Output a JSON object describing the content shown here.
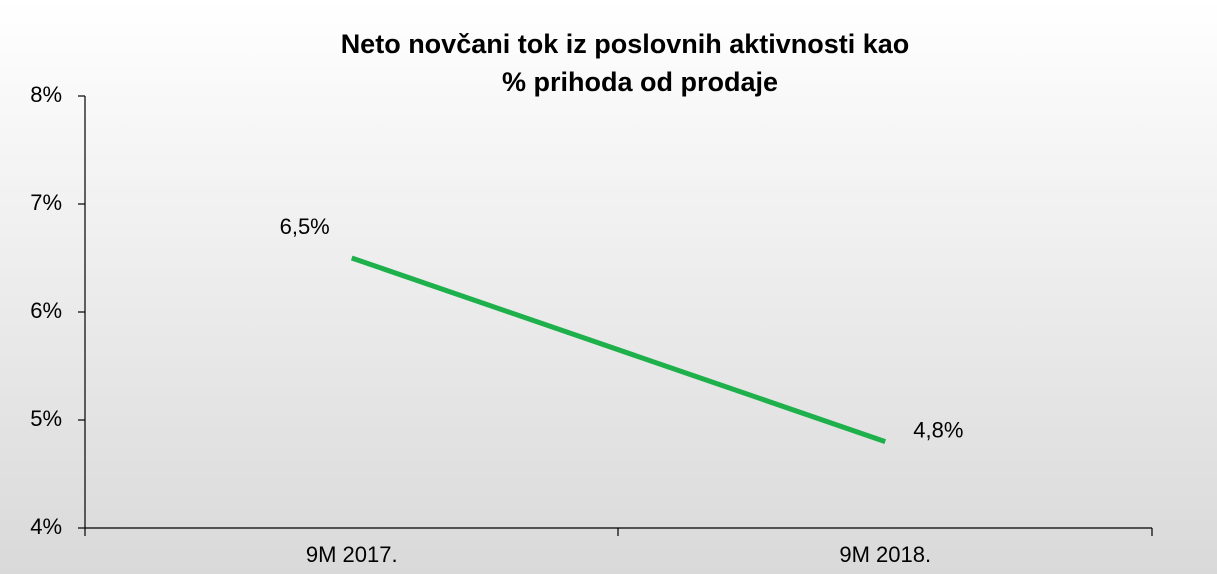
{
  "chart_data": {
    "type": "line",
    "title": [
      "Neto novčani tok iz poslovnih aktivnosti kao",
      "% prihoda od prodaje"
    ],
    "categories": [
      "9M 2017.",
      "9M 2018."
    ],
    "series": [
      {
        "name": "Neto novčani tok iz poslovnih aktivnosti kao % prihoda od prodaje",
        "color": "#1db04b",
        "values": [
          6.5,
          4.8
        ],
        "value_labels": [
          "6,5%",
          "4,8%"
        ]
      }
    ],
    "ylim": [
      4,
      8
    ],
    "yticks": [
      {
        "value": 4,
        "label": "4%"
      },
      {
        "value": 5,
        "label": "5%"
      },
      {
        "value": 6,
        "label": "6%"
      },
      {
        "value": 7,
        "label": "7%"
      },
      {
        "value": 8,
        "label": "8%"
      }
    ],
    "grid": false
  }
}
